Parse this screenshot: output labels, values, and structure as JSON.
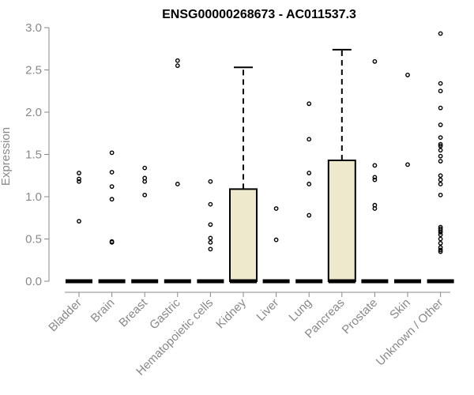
{
  "chart_data": {
    "type": "boxplot",
    "title": "ENSG00000268673 - AC011537.3",
    "xlabel": "",
    "ylabel": "Expression",
    "ylim": [
      0,
      3.0
    ],
    "yticks": [
      "0.0",
      "0.5",
      "1.0",
      "1.5",
      "2.0",
      "2.5",
      "3.0"
    ],
    "box_fill": "#EEE8CD",
    "grid": false,
    "categories": [
      "Bladder",
      "Brain",
      "Breast",
      "Gastric",
      "Hematopoietic cells",
      "Kidney",
      "Liver",
      "Lung",
      "Pancreas",
      "Prostate",
      "Skin",
      "Unknown / Other"
    ],
    "boxes": [
      {
        "q1": 0,
        "median": 0,
        "q3": 0,
        "whisker_low": 0,
        "whisker_high": 0,
        "outliers": [
          0.71,
          1.18,
          1.21,
          1.28
        ]
      },
      {
        "q1": 0,
        "median": 0,
        "q3": 0,
        "whisker_low": 0,
        "whisker_high": 0,
        "outliers": [
          0.46,
          0.47,
          0.97,
          1.12,
          1.29,
          1.52
        ]
      },
      {
        "q1": 0,
        "median": 0,
        "q3": 0,
        "whisker_low": 0,
        "whisker_high": 0,
        "outliers": [
          1.02,
          1.18,
          1.22,
          1.34
        ]
      },
      {
        "q1": 0,
        "median": 0,
        "q3": 0,
        "whisker_low": 0,
        "whisker_high": 0,
        "outliers": [
          1.15,
          2.55,
          2.61
        ]
      },
      {
        "q1": 0,
        "median": 0,
        "q3": 0,
        "whisker_low": 0,
        "whisker_high": 0,
        "outliers": [
          0.38,
          0.46,
          0.51,
          0.67,
          0.91,
          1.18
        ]
      },
      {
        "q1": 0,
        "median": 0,
        "q3": 1.09,
        "whisker_low": 0,
        "whisker_high": 2.53,
        "outliers": []
      },
      {
        "q1": 0,
        "median": 0,
        "q3": 0,
        "whisker_low": 0,
        "whisker_high": 0,
        "outliers": [
          0.49,
          0.86
        ]
      },
      {
        "q1": 0,
        "median": 0,
        "q3": 0,
        "whisker_low": 0,
        "whisker_high": 0,
        "outliers": [
          0.78,
          1.15,
          1.28,
          1.68,
          2.1
        ]
      },
      {
        "q1": 0,
        "median": 0,
        "q3": 1.43,
        "whisker_low": 0,
        "whisker_high": 2.74,
        "outliers": []
      },
      {
        "q1": 0,
        "median": 0,
        "q3": 0,
        "whisker_low": 0,
        "whisker_high": 0,
        "outliers": [
          0.86,
          0.9,
          1.2,
          1.23,
          1.37,
          2.6
        ]
      },
      {
        "q1": 0,
        "median": 0,
        "q3": 0,
        "whisker_low": 0,
        "whisker_high": 0,
        "outliers": [
          1.38,
          2.44
        ]
      },
      {
        "q1": 0,
        "median": 0,
        "q3": 0,
        "whisker_low": 0,
        "whisker_high": 0,
        "outliers": [
          0.35,
          0.37,
          0.4,
          0.45,
          0.5,
          0.55,
          0.58,
          0.6,
          0.62,
          0.64,
          1.02,
          1.15,
          1.2,
          1.25,
          1.42,
          1.48,
          1.55,
          1.6,
          1.62,
          1.7,
          1.85,
          2.05,
          2.25,
          2.34,
          2.93
        ]
      }
    ]
  }
}
